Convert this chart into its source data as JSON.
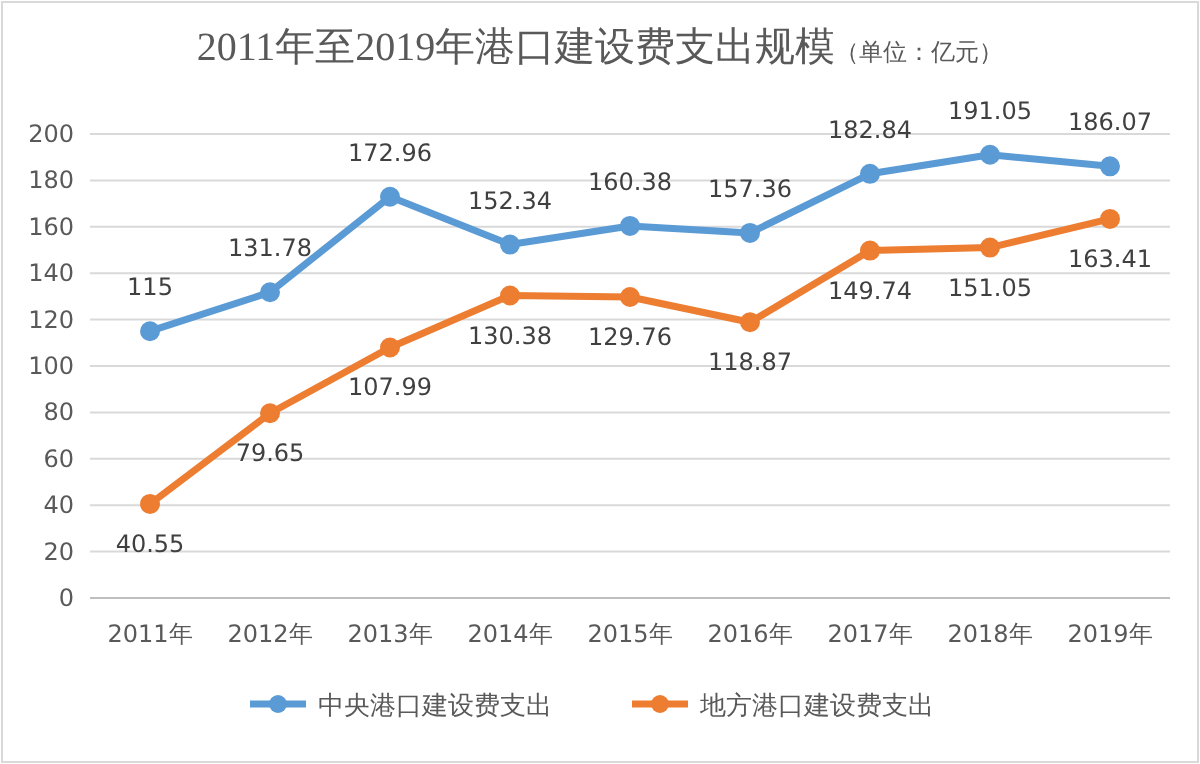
{
  "chart_data": {
    "type": "line",
    "title": "2011年至2019年港口建设费支出规模",
    "subtitle": "（单位：亿元）",
    "categories": [
      "2011年",
      "2012年",
      "2013年",
      "2014年",
      "2015年",
      "2016年",
      "2017年",
      "2018年",
      "2019年"
    ],
    "series": [
      {
        "name": "中央港口建设费支出",
        "color": "#5b9bd5",
        "values": [
          115,
          131.78,
          172.96,
          152.34,
          160.38,
          157.36,
          182.84,
          191.05,
          186.07
        ]
      },
      {
        "name": "地方港口建设费支出",
        "color": "#ed7d31",
        "values": [
          40.55,
          79.65,
          107.99,
          130.38,
          129.76,
          118.87,
          149.74,
          151.05,
          163.41
        ]
      }
    ],
    "ylim": [
      0,
      200
    ],
    "yticks": [
      0,
      20,
      40,
      60,
      80,
      100,
      120,
      140,
      160,
      180,
      200
    ],
    "grid": "y",
    "legend": "bottom",
    "marker": "circle",
    "line_style": "solid",
    "data_labels": true
  }
}
